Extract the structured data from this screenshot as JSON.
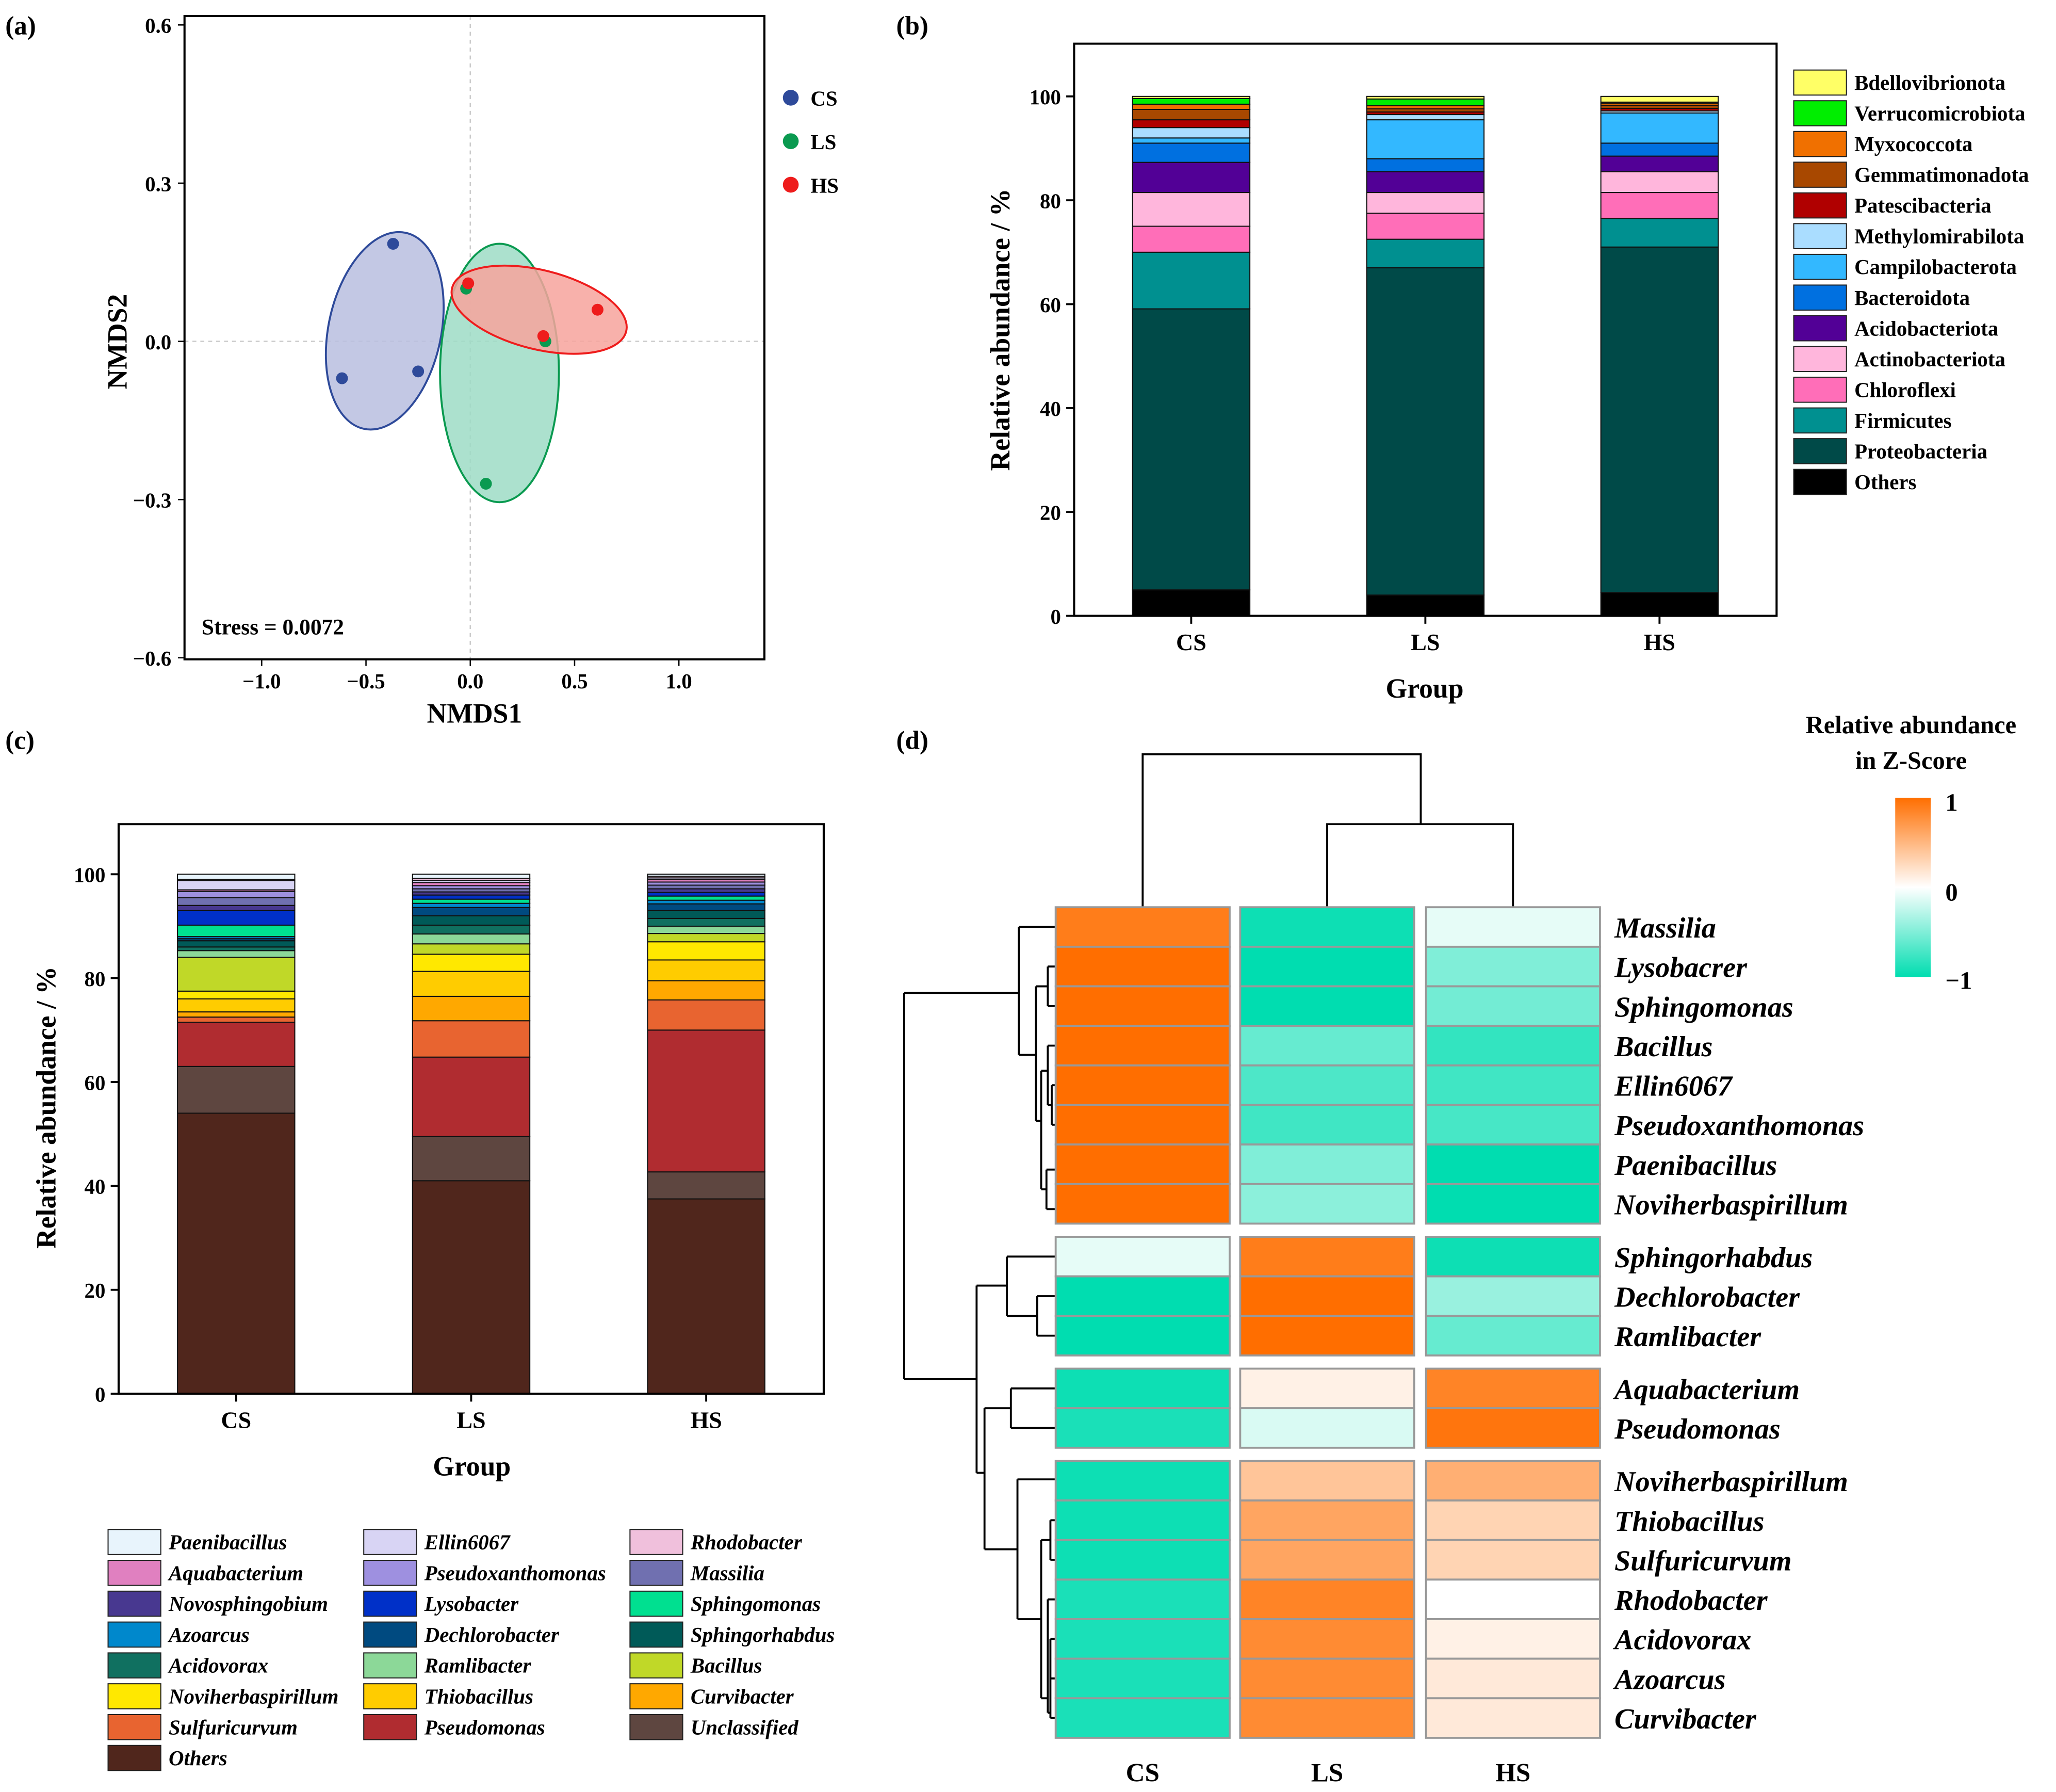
{
  "panel_labels": [
    "(a)",
    "(b)",
    "(c)",
    "(d)"
  ],
  "chart_data": [
    {
      "panel": "(a)",
      "type": "scatter",
      "xlabel": "NMDS1",
      "ylabel": "NMDS2",
      "xticks": [
        "−1.0",
        "−0.5",
        "0.0",
        "0.5",
        "1.0"
      ],
      "xtick_values": [
        -1.0,
        -0.5,
        0.0,
        0.5,
        1.0
      ],
      "yticks": [
        "0.6",
        "0.3",
        "0.0",
        "−0.3",
        "−0.6"
      ],
      "ytick_values": [
        0.6,
        0.3,
        0.0,
        -0.3,
        -0.6
      ],
      "xlim": [
        -1.37,
        1.41
      ],
      "ylim": [
        -0.603,
        0.617
      ],
      "annotation": "Stress = 0.0072",
      "legend_position": "top-right outside",
      "series": [
        {
          "name": "CS",
          "color": "#2E4A9A",
          "fill": "#B8BEDF",
          "points": [
            [
              -0.37,
              0.185
            ],
            [
              -0.615,
              -0.07
            ],
            [
              -0.25,
              -0.057
            ]
          ],
          "ellipse": {
            "cx": -0.41,
            "cy": 0.02,
            "rx": 0.27,
            "ry": 0.19,
            "tilt_deg": 12
          }
        },
        {
          "name": "LS",
          "color": "#0A9A50",
          "fill": "#9EDCC6",
          "points": [
            [
              -0.02,
              0.1
            ],
            [
              0.36,
              0.0
            ],
            [
              0.075,
              -0.27
            ]
          ],
          "ellipse": {
            "cx": 0.14,
            "cy": -0.06,
            "rx": 0.285,
            "ry": 0.245,
            "tilt_deg": 0
          }
        },
        {
          "name": "HS",
          "color": "#EE1C1C",
          "fill": "#F7A39C",
          "points": [
            [
              -0.01,
              0.11
            ],
            [
              0.61,
              0.06
            ],
            [
              0.35,
              0.01
            ]
          ],
          "ellipse": {
            "cx": 0.33,
            "cy": 0.06,
            "rx": 0.43,
            "ry": 0.075,
            "tilt_deg": 14
          }
        }
      ]
    },
    {
      "panel": "(b)",
      "type": "bar",
      "stacked": true,
      "categories": [
        "CS",
        "LS",
        "HS"
      ],
      "xlabel": "Group",
      "ylabel": "Relative abundance / %",
      "ylim": [
        0,
        110
      ],
      "yticks": [
        0,
        20,
        40,
        60,
        80,
        100
      ],
      "legend_position": "right",
      "legend_order": [
        "Bdellovibrionota",
        "Verrucomicrobiota",
        "Myxococcota",
        "Gemmatimonadota",
        "Patescibacteria",
        "Methylomirabilota",
        "Campilobacterota",
        "Bacteroidota",
        "Acidobacteriota",
        "Actinobacteriota",
        "Chloroflexi",
        "Firmicutes",
        "Proteobacteria",
        "Others"
      ],
      "series": [
        {
          "name": "Others",
          "color": "#000000",
          "values": [
            5,
            4,
            4.5
          ]
        },
        {
          "name": "Proteobacteria",
          "color": "#004A48",
          "values": [
            54.1,
            63,
            66.5
          ]
        },
        {
          "name": "Firmicutes",
          "color": "#009090",
          "values": [
            10.9,
            5.5,
            5.5
          ]
        },
        {
          "name": "Chloroflexi",
          "color": "#FF6EB8",
          "values": [
            5,
            5,
            5
          ]
        },
        {
          "name": "Actinobacteriota",
          "color": "#FFB6DC",
          "values": [
            6.5,
            4,
            4
          ]
        },
        {
          "name": "Acidobacteriota",
          "color": "#520096",
          "values": [
            5.8,
            4,
            3
          ]
        },
        {
          "name": "Bacteroidota",
          "color": "#0070E0",
          "values": [
            3.7,
            2.5,
            2.5
          ]
        },
        {
          "name": "Campilobacterota",
          "color": "#33B8FF",
          "values": [
            1,
            7.5,
            5.8
          ]
        },
        {
          "name": "Methylomirabilota",
          "color": "#AADDFF",
          "values": [
            2,
            1,
            0.4
          ]
        },
        {
          "name": "Patescibacteria",
          "color": "#B00000",
          "values": [
            1.5,
            0.5,
            0.5
          ]
        },
        {
          "name": "Gemmatimonadota",
          "color": "#A84800",
          "values": [
            2,
            0.6,
            0.6
          ]
        },
        {
          "name": "Myxococcota",
          "color": "#F07000",
          "values": [
            1,
            0.6,
            0.4
          ]
        },
        {
          "name": "Verrucomicrobiota",
          "color": "#00EE00",
          "values": [
            1.1,
            1.3,
            0.2
          ]
        },
        {
          "name": "Bdellovibrionota",
          "color": "#FFFF66",
          "values": [
            0.4,
            0.5,
            1.1
          ]
        }
      ]
    },
    {
      "panel": "(c)",
      "type": "bar",
      "stacked": true,
      "categories": [
        "CS",
        "LS",
        "HS"
      ],
      "xlabel": "Group",
      "ylabel": "Relative abundance / %",
      "ylim": [
        0,
        110
      ],
      "yticks": [
        0,
        20,
        40,
        60,
        80,
        100
      ],
      "legend_position": "bottom",
      "legend_order": [
        "Paenibacillus",
        "Ellin6067",
        "Rhodobacter",
        "Aquabacterium",
        "Pseudoxanthomonas",
        "Massilia",
        "Novosphingobium",
        "Lysobacter",
        "Sphingomonas",
        "Azoarcus",
        "Dechlorobacter",
        "Sphingorhabdus",
        "Acidovorax",
        "Ramlibacter",
        "Bacillus",
        "Noviherbaspirillum",
        "Thiobacillus",
        "Curvibacter",
        "Sulfuricurvum",
        "Pseudomonas",
        "Unclassified",
        "Others"
      ],
      "series": [
        {
          "name": "Others",
          "color": "#50261C",
          "values": [
            54,
            41,
            37.5
          ]
        },
        {
          "name": "Unclassified",
          "color": "#5E4640",
          "values": [
            9,
            8.5,
            5.2
          ]
        },
        {
          "name": "Pseudomonas",
          "color": "#B02C30",
          "values": [
            8.5,
            15.3,
            27.3
          ]
        },
        {
          "name": "Sulfuricurvum",
          "color": "#E86430",
          "values": [
            1,
            7,
            5.8
          ]
        },
        {
          "name": "Curvibacter",
          "color": "#FFA800",
          "values": [
            1,
            4.7,
            3.7
          ]
        },
        {
          "name": "Thiobacillus",
          "color": "#FFCC00",
          "values": [
            2.5,
            4.8,
            4
          ]
        },
        {
          "name": "Noviherbaspirillum",
          "color": "#FFE800",
          "values": [
            1.5,
            3.3,
            3.5
          ]
        },
        {
          "name": "Bacillus",
          "color": "#C0D828",
          "values": [
            6.5,
            2,
            1.6
          ]
        },
        {
          "name": "Ramlibacter",
          "color": "#8CD898",
          "values": [
            1.3,
            1.9,
            1.4
          ]
        },
        {
          "name": "Acidovorax",
          "color": "#107060",
          "values": [
            0.7,
            1.7,
            1.5
          ]
        },
        {
          "name": "Sphingorhabdus",
          "color": "#005A58",
          "values": [
            1.2,
            1.8,
            1.5
          ]
        },
        {
          "name": "Dechlorobacter",
          "color": "#004A80",
          "values": [
            0.4,
            1.6,
            1.3
          ]
        },
        {
          "name": "Azoarcus",
          "color": "#0088CC",
          "values": [
            0.4,
            0.8,
            0.7
          ]
        },
        {
          "name": "Sphingomonas",
          "color": "#00E090",
          "values": [
            2.2,
            0.8,
            0.8
          ]
        },
        {
          "name": "Lysobacter",
          "color": "#0030C8",
          "values": [
            2.8,
            0.8,
            0.7
          ]
        },
        {
          "name": "Novosphingobium",
          "color": "#483890",
          "values": [
            1,
            0.6,
            0.7
          ]
        },
        {
          "name": "Massilia",
          "color": "#7070B0",
          "values": [
            1.5,
            0.6,
            0.7
          ]
        },
        {
          "name": "Pseudoxanthomonas",
          "color": "#9E90E0",
          "values": [
            1.2,
            0.6,
            0.6
          ]
        },
        {
          "name": "Aquabacterium",
          "color": "#E080C0",
          "values": [
            0.3,
            0.6,
            0.5
          ]
        },
        {
          "name": "Ellin6067",
          "color": "#D8D4F4",
          "values": [
            1.8,
            0.4,
            0.3
          ]
        },
        {
          "name": "Rhodobacter",
          "color": "#F0C0DC",
          "values": [
            0.2,
            0.4,
            0.3
          ]
        },
        {
          "name": "Paenibacillus",
          "color": "#E8F4FC",
          "values": [
            1,
            0.8,
            0.4
          ]
        }
      ]
    },
    {
      "panel": "(d)",
      "type": "heatmap",
      "columns": [
        "CS",
        "LS",
        "HS"
      ],
      "colorbar_title": [
        "Relative abundance",
        "in Z-Score"
      ],
      "colorbar_ticks": [
        "1",
        "0",
        "−1"
      ],
      "colorbar_range": [
        -1,
        1
      ],
      "colors": {
        "high": "#FF6E00",
        "mid": "#FFFFFF",
        "low": "#00DDB0"
      },
      "row_groups": [
        [
          {
            "name": "Massilia",
            "z": [
              0.9,
              -0.95,
              -0.1
            ]
          },
          {
            "name": "Lysobacrer",
            "z": [
              1,
              -1,
              -0.5
            ]
          },
          {
            "name": "Sphingomonas",
            "z": [
              1,
              -1,
              -0.55
            ]
          },
          {
            "name": "Bacillus",
            "z": [
              1,
              -0.6,
              -0.8
            ]
          },
          {
            "name": "Ellin6067",
            "z": [
              1,
              -0.7,
              -0.75
            ]
          },
          {
            "name": "Pseudoxanthomonas",
            "z": [
              1,
              -0.75,
              -0.72
            ]
          },
          {
            "name": "Paenibacillus",
            "z": [
              1,
              -0.5,
              -1
            ]
          },
          {
            "name": "Noviherbaspirillum",
            "z": [
              1,
              -0.45,
              -1
            ]
          }
        ],
        [
          {
            "name": "Sphingorhabdus",
            "z": [
              -0.1,
              0.9,
              -0.95
            ]
          },
          {
            "name": "Dechlorobacter",
            "z": [
              -1,
              1,
              -0.4
            ]
          },
          {
            "name": "Ramlibacter",
            "z": [
              -1,
              1,
              -0.6
            ]
          }
        ],
        [
          {
            "name": "Aquabacterium",
            "z": [
              -0.95,
              0.1,
              0.85
            ]
          },
          {
            "name": "Pseudomonas",
            "z": [
              -0.9,
              -0.15,
              0.95
            ]
          }
        ],
        [
          {
            "name": "Noviherbaspirillum",
            "z": [
              -0.95,
              0.4,
              0.55
            ]
          },
          {
            "name": "Thiobacillus",
            "z": [
              -0.95,
              0.62,
              0.3
            ]
          },
          {
            "name": "Sulfuricurvum",
            "z": [
              -0.95,
              0.62,
              0.3
            ]
          },
          {
            "name": "Rhodobacter",
            "z": [
              -0.9,
              0.85,
              0.0
            ]
          },
          {
            "name": "Acidovorax",
            "z": [
              -0.9,
              0.8,
              0.1
            ]
          },
          {
            "name": "Azoarcus",
            "z": [
              -0.9,
              0.8,
              0.15
            ]
          },
          {
            "name": "Curvibacter",
            "z": [
              -0.9,
              0.8,
              0.15
            ]
          }
        ]
      ]
    }
  ]
}
